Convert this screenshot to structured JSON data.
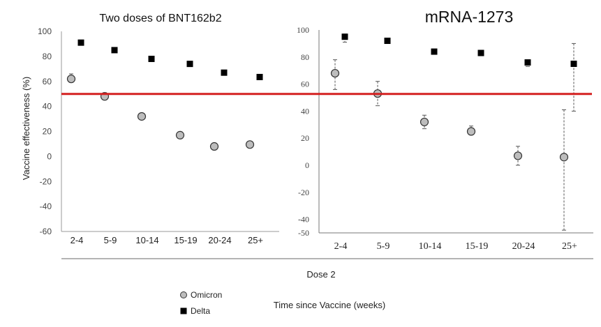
{
  "colors": {
    "omicron": "#bdbdbd",
    "delta": "#000000",
    "threshold": "#d42020",
    "axis": "#555555"
  },
  "threshold_value": 50,
  "xlabel_main": "Dose 2",
  "xlabel_bottom": "Time since Vaccine (weeks)",
  "chart_data": [
    {
      "type": "scatter",
      "title": "Two doses of BNT162b2",
      "ylabel": "Vaccine effectiveness (%)",
      "ylim": [
        -60,
        100
      ],
      "yticks": [
        "100",
        "80",
        "60",
        "40",
        "20",
        "0",
        "-20",
        "-40",
        "-60"
      ],
      "categories": [
        "2-4",
        "5-9",
        "10-14",
        "15-19",
        "20-24",
        "25+"
      ],
      "series": [
        {
          "name": "Omicron",
          "values": [
            62,
            48,
            32,
            17,
            8,
            9.5
          ],
          "err_low": [
            60,
            46,
            30,
            15,
            6,
            7
          ],
          "err_high": [
            66,
            51,
            33,
            18,
            9,
            12
          ]
        },
        {
          "name": "Delta",
          "values": [
            91,
            85,
            78,
            74,
            67,
            63.5
          ]
        }
      ]
    },
    {
      "type": "scatter",
      "title": "mRNA-1273",
      "ylim": [
        -50,
        100
      ],
      "yticks": [
        "100",
        "80",
        "60",
        "40",
        "20",
        "0",
        "-20",
        "-40",
        "-50"
      ],
      "categories": [
        "2-4",
        "5-9",
        "10-14",
        "15-19",
        "20-24",
        "25+"
      ],
      "series": [
        {
          "name": "Omicron",
          "values": [
            68,
            53,
            32,
            25,
            7,
            6
          ],
          "err_low": [
            56,
            44,
            27,
            23,
            0,
            -48
          ],
          "err_high": [
            78,
            62,
            37,
            29,
            14,
            41
          ]
        },
        {
          "name": "Delta",
          "values": [
            95,
            92,
            84,
            83,
            76,
            75
          ],
          "err_low": [
            91,
            90,
            82,
            81,
            73,
            40
          ],
          "err_high": [
            97,
            94,
            85,
            85,
            78,
            90
          ]
        }
      ]
    }
  ],
  "legend": [
    {
      "label": "Omicron",
      "marker": "circle"
    },
    {
      "label": "Delta",
      "marker": "square"
    }
  ]
}
